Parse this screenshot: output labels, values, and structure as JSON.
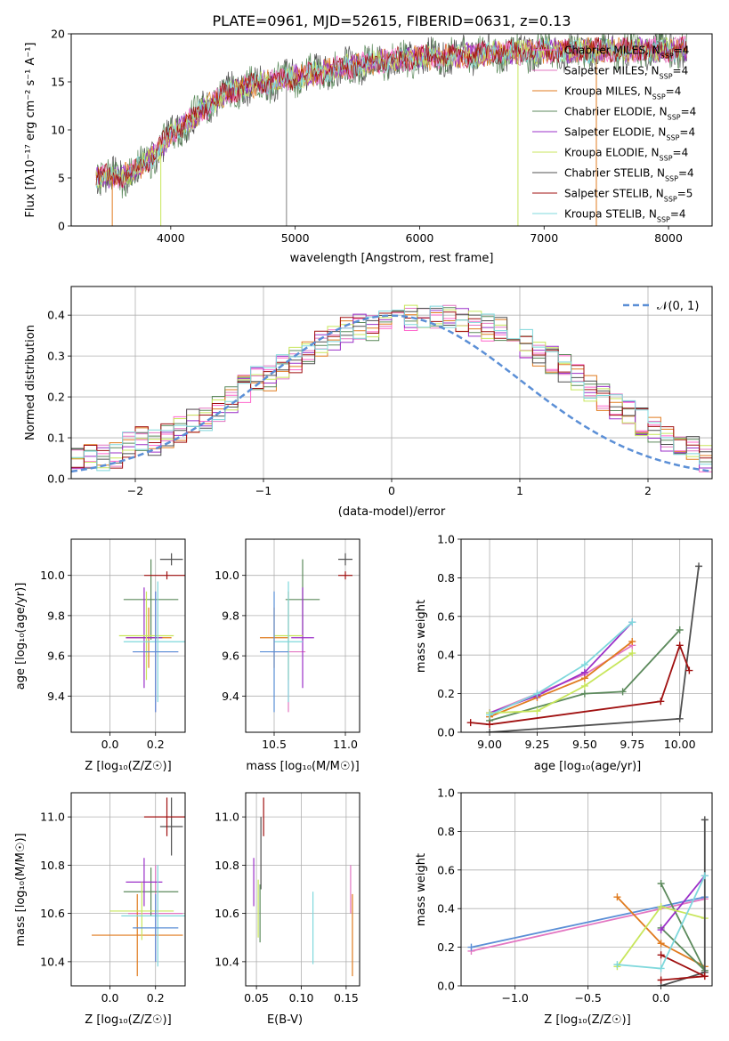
{
  "figure": {
    "title": "PLATE=0961, MJD=52615, FIBERID=0631, z=0.13"
  },
  "models": [
    {
      "name": "Chabrier MILES",
      "nssp": "4",
      "color": "#ff66cc"
    },
    {
      "name": "Salpeter MILES",
      "nssp": "4",
      "color": "#e377c2"
    },
    {
      "name": "Kroupa MILES",
      "nssp": "4",
      "color": "#e07b1f"
    },
    {
      "name": "Chabrier ELODIE",
      "nssp": "4",
      "color": "#5c8a5c"
    },
    {
      "name": "Salpeter ELODIE",
      "nssp": "4",
      "color": "#9b30c8"
    },
    {
      "name": "Kroupa ELODIE",
      "nssp": "4",
      "color": "#c8e65c"
    },
    {
      "name": "Chabrier STELIB",
      "nssp": "4",
      "color": "#505050"
    },
    {
      "name": "Salpeter STELIB",
      "nssp": "5",
      "color": "#a01010"
    },
    {
      "name": "Kroupa STELIB",
      "nssp": "4",
      "color": "#7fd8dc"
    }
  ],
  "chart_data": [
    {
      "id": "spectrum",
      "type": "line",
      "title": "PLATE=0961, MJD=52615, FIBERID=0631, z=0.13",
      "xlabel": "wavelength [Angstrom, rest frame]",
      "ylabel": "Flux [fλ10⁻¹⁷ erg cm⁻² s⁻¹ A⁻¹]",
      "xlim": [
        3200,
        8350
      ],
      "ylim": [
        0,
        20
      ],
      "xticks": [
        "4000",
        "5000",
        "6000",
        "7000",
        "8000"
      ],
      "yticks": [
        "0",
        "5",
        "10",
        "15",
        "20"
      ],
      "legend_position": "top-right",
      "continuum_x": [
        3400,
        3600,
        3800,
        4000,
        4200,
        4400,
        4600,
        4800,
        5000,
        5200,
        5400,
        5600,
        5800,
        6000,
        6200,
        6400,
        6600,
        6800,
        7000,
        7200,
        7400,
        7600,
        7800,
        8000,
        8200
      ],
      "continuum_y": [
        5.2,
        5.0,
        6.5,
        9.5,
        11.5,
        13.5,
        14.5,
        15.0,
        15.5,
        16.0,
        16.5,
        17.0,
        17.3,
        17.5,
        17.7,
        17.8,
        18.0,
        18.1,
        18.2,
        18.2,
        18.3,
        18.3,
        18.3,
        18.4,
        18.4
      ]
    },
    {
      "id": "residuals",
      "type": "bar",
      "xlabel": "(data-model)/error",
      "ylabel": "Normed distribution",
      "xlim": [
        -2.5,
        2.5
      ],
      "ylim": [
        0,
        0.47
      ],
      "xticks": [
        "−2",
        "−1",
        "0",
        "1",
        "2"
      ],
      "yticks": [
        "0.0",
        "0.1",
        "0.2",
        "0.3",
        "0.4"
      ],
      "legend": "𝒩(0, 1)",
      "legend_position": "top-right",
      "bin_width": 0.1,
      "hist_values": [
        0.04,
        0.03,
        0.04,
        0.05,
        0.05,
        0.06,
        0.08,
        0.1,
        0.09,
        0.11,
        0.12,
        0.14,
        0.15,
        0.17,
        0.19,
        0.22,
        0.24,
        0.25,
        0.27,
        0.29,
        0.31,
        0.33,
        0.34,
        0.36,
        0.37,
        0.37,
        0.38,
        0.39,
        0.39,
        0.4,
        0.4,
        0.39,
        0.39,
        0.38,
        0.37,
        0.36,
        0.35,
        0.33,
        0.31,
        0.29,
        0.27,
        0.25,
        0.22,
        0.2,
        0.18,
        0.16,
        0.14,
        0.12,
        0.1,
        0.08,
        0.07,
        0.05,
        0.05,
        0.04,
        0.04
      ],
      "gaussian_color": "#5b8fd6"
    },
    {
      "id": "age-vs-Z",
      "type": "scatter",
      "xlabel": "Z [log₁₀(Z/Z☉)]",
      "ylabel": "age  [log₁₀(age/yr)]",
      "xlim": [
        -0.17,
        0.33
      ],
      "ylim": [
        9.22,
        10.18
      ],
      "xticks": [
        "0.0",
        "0.2"
      ],
      "yticks": [
        "9.4",
        "9.6",
        "9.8",
        "10.0"
      ],
      "points": [
        {
          "x": 0.2,
          "y": 9.62,
          "xerr": 0.1,
          "yerr": 0.3,
          "color": "#e377c2"
        },
        {
          "x": 0.17,
          "y": 9.69,
          "xerr": 0.1,
          "yerr": 0.15,
          "color": "#e07b1f"
        },
        {
          "x": 0.18,
          "y": 9.88,
          "xerr": 0.12,
          "yerr": 0.2,
          "color": "#5c8a5c"
        },
        {
          "x": 0.15,
          "y": 9.69,
          "xerr": 0.08,
          "yerr": 0.25,
          "color": "#9b30c8"
        },
        {
          "x": 0.16,
          "y": 9.7,
          "xerr": 0.12,
          "yerr": 0.22,
          "color": "#c8e65c"
        },
        {
          "x": 0.27,
          "y": 10.08,
          "xerr": 0.05,
          "yerr": 0.03,
          "color": "#505050"
        },
        {
          "x": 0.25,
          "y": 10.0,
          "xerr": 0.1,
          "yerr": 0.02,
          "color": "#a01010"
        },
        {
          "x": 0.21,
          "y": 9.67,
          "xerr": 0.15,
          "yerr": 0.3,
          "color": "#7fd8dc"
        },
        {
          "x": 0.2,
          "y": 9.62,
          "xerr": 0.1,
          "yerr": 0.3,
          "color": "#5b8fd6"
        }
      ]
    },
    {
      "id": "age-vs-mass",
      "type": "scatter",
      "xlabel": "mass [log₁₀(M/M☉)]",
      "ylabel": "",
      "xlim": [
        10.3,
        11.1
      ],
      "ylim": [
        9.22,
        10.18
      ],
      "xticks": [
        "10.5",
        "11.0"
      ],
      "yticks": [
        "9.4",
        "9.6",
        "9.8",
        "10.0"
      ],
      "points": [
        {
          "x": 10.6,
          "y": 9.62,
          "xerr": 0.12,
          "yerr": 0.3,
          "color": "#e377c2"
        },
        {
          "x": 10.5,
          "y": 9.69,
          "xerr": 0.1,
          "yerr": 0.15,
          "color": "#e07b1f"
        },
        {
          "x": 10.7,
          "y": 9.88,
          "xerr": 0.12,
          "yerr": 0.2,
          "color": "#5c8a5c"
        },
        {
          "x": 10.7,
          "y": 9.69,
          "xerr": 0.08,
          "yerr": 0.25,
          "color": "#9b30c8"
        },
        {
          "x": 10.6,
          "y": 9.7,
          "xerr": 0.1,
          "yerr": 0.22,
          "color": "#c8e65c"
        },
        {
          "x": 11.0,
          "y": 10.08,
          "xerr": 0.05,
          "yerr": 0.03,
          "color": "#505050"
        },
        {
          "x": 11.0,
          "y": 10.0,
          "xerr": 0.05,
          "yerr": 0.02,
          "color": "#a01010"
        },
        {
          "x": 10.6,
          "y": 9.67,
          "xerr": 0.1,
          "yerr": 0.3,
          "color": "#7fd8dc"
        },
        {
          "x": 10.5,
          "y": 9.62,
          "xerr": 0.1,
          "yerr": 0.3,
          "color": "#5b8fd6"
        }
      ]
    },
    {
      "id": "weight-vs-age",
      "type": "line",
      "xlabel": "age  [log₁₀(age/yr)]",
      "ylabel": "mass weight",
      "xlim": [
        8.85,
        10.17
      ],
      "ylim": [
        0,
        1
      ],
      "xticks": [
        "9.00",
        "9.25",
        "9.50",
        "9.75",
        "10.00"
      ],
      "yticks": [
        "0.0",
        "0.2",
        "0.4",
        "0.6",
        "0.8",
        "1.0"
      ],
      "series": [
        {
          "x": [
            9.0,
            9.25,
            9.5,
            9.75
          ],
          "y": [
            0.1,
            0.2,
            0.3,
            0.45
          ],
          "color": "#e377c2"
        },
        {
          "x": [
            9.0,
            9.25,
            9.5,
            9.75
          ],
          "y": [
            0.08,
            0.18,
            0.28,
            0.47
          ],
          "color": "#e07b1f"
        },
        {
          "x": [
            9.0,
            9.5,
            9.7,
            10.0
          ],
          "y": [
            0.06,
            0.2,
            0.21,
            0.53
          ],
          "color": "#5c8a5c"
        },
        {
          "x": [
            9.0,
            9.25,
            9.5,
            9.75
          ],
          "y": [
            0.1,
            0.19,
            0.31,
            0.57
          ],
          "color": "#9b30c8"
        },
        {
          "x": [
            9.0,
            9.25,
            9.5,
            9.75
          ],
          "y": [
            0.1,
            0.11,
            0.24,
            0.41
          ],
          "color": "#c8e65c"
        },
        {
          "x": [
            9.0,
            10.0,
            10.1
          ],
          "y": [
            0.0,
            0.07,
            0.86
          ],
          "color": "#505050"
        },
        {
          "x": [
            8.9,
            9.0,
            9.9,
            10.0,
            10.05
          ],
          "y": [
            0.05,
            0.04,
            0.16,
            0.45,
            0.32
          ],
          "color": "#a01010"
        },
        {
          "x": [
            9.0,
            9.25,
            9.5,
            9.75
          ],
          "y": [
            0.09,
            0.2,
            0.35,
            0.57
          ],
          "color": "#7fd8dc"
        }
      ]
    },
    {
      "id": "mass-vs-Z",
      "type": "scatter",
      "xlabel": "Z [log₁₀(Z/Z☉)]",
      "ylabel": "mass [log₁₀(M/M☉)]",
      "xlim": [
        -0.17,
        0.33
      ],
      "ylim": [
        10.3,
        11.1
      ],
      "xticks": [
        "0.0",
        "0.2"
      ],
      "yticks": [
        "10.4",
        "10.6",
        "10.8",
        "11.0"
      ],
      "points": [
        {
          "x": 0.2,
          "y": 10.6,
          "xerr": 0.12,
          "yerr": 0.2,
          "color": "#e377c2"
        },
        {
          "x": 0.12,
          "y": 10.51,
          "xerr": 0.2,
          "yerr": 0.17,
          "color": "#e07b1f"
        },
        {
          "x": 0.18,
          "y": 10.69,
          "xerr": 0.12,
          "yerr": 0.1,
          "color": "#5c8a5c"
        },
        {
          "x": 0.15,
          "y": 10.73,
          "xerr": 0.08,
          "yerr": 0.1,
          "color": "#9b30c8"
        },
        {
          "x": 0.14,
          "y": 10.61,
          "xerr": 0.14,
          "yerr": 0.12,
          "color": "#c8e65c"
        },
        {
          "x": 0.27,
          "y": 10.96,
          "xerr": 0.05,
          "yerr": 0.12,
          "color": "#505050"
        },
        {
          "x": 0.25,
          "y": 11.0,
          "xerr": 0.1,
          "yerr": 0.08,
          "color": "#a01010"
        },
        {
          "x": 0.21,
          "y": 10.59,
          "xerr": 0.16,
          "yerr": 0.21,
          "color": "#7fd8dc"
        },
        {
          "x": 0.2,
          "y": 10.54,
          "xerr": 0.1,
          "yerr": 0.14,
          "color": "#5b8fd6"
        }
      ]
    },
    {
      "id": "mass-vs-ebv",
      "type": "scatter",
      "xlabel": "E(B-V)",
      "ylabel": "",
      "xlim": [
        0.038,
        0.165
      ],
      "ylim": [
        10.3,
        11.1
      ],
      "xticks": [
        "0.05",
        "0.10",
        "0.15"
      ],
      "yticks": [
        "10.4",
        "10.6",
        "10.8",
        "11.0"
      ],
      "points": [
        {
          "x": 0.155,
          "y": 10.7,
          "yerr": 0.1,
          "color": "#e377c2"
        },
        {
          "x": 0.157,
          "y": 10.51,
          "yerr": 0.17,
          "color": "#e07b1f"
        },
        {
          "x": 0.055,
          "y": 10.85,
          "yerr": 0.15,
          "color": "#505050"
        },
        {
          "x": 0.058,
          "y": 11.0,
          "yerr": 0.08,
          "color": "#a01010"
        },
        {
          "x": 0.047,
          "y": 10.73,
          "yerr": 0.1,
          "color": "#9b30c8"
        },
        {
          "x": 0.052,
          "y": 10.62,
          "yerr": 0.12,
          "color": "#c8e65c"
        },
        {
          "x": 0.113,
          "y": 10.54,
          "yerr": 0.15,
          "color": "#7fd8dc"
        },
        {
          "x": 0.054,
          "y": 10.6,
          "yerr": 0.12,
          "color": "#5c8a5c"
        }
      ]
    },
    {
      "id": "weight-vs-Z",
      "type": "line",
      "xlabel": "Z [log₁₀(Z/Z☉)]",
      "ylabel": "mass weight",
      "xlim": [
        -1.37,
        0.35
      ],
      "ylim": [
        0,
        1
      ],
      "xticks": [
        "−1.0",
        "−0.5",
        "0.0"
      ],
      "yticks": [
        "0.0",
        "0.2",
        "0.4",
        "0.6",
        "0.8",
        "1.0"
      ],
      "series": [
        {
          "x": [
            -1.3,
            0.3
          ],
          "y": [
            0.18,
            0.45
          ],
          "color": "#e377c2"
        },
        {
          "x": [
            -1.3,
            0.3
          ],
          "y": [
            0.2,
            0.46
          ],
          "color": "#5b8fd6"
        },
        {
          "x": [
            -0.3,
            0.0,
            0.3
          ],
          "y": [
            0.46,
            0.22,
            0.1
          ],
          "color": "#e07b1f"
        },
        {
          "x": [
            0.0,
            0.3,
            0.0
          ],
          "y": [
            0.53,
            0.08,
            0.3
          ],
          "color": "#5c8a5c"
        },
        {
          "x": [
            0.0,
            0.3
          ],
          "y": [
            0.29,
            0.57
          ],
          "color": "#9b30c8"
        },
        {
          "x": [
            -0.3,
            0.0,
            0.3
          ],
          "y": [
            0.1,
            0.41,
            0.35
          ],
          "color": "#c8e65c"
        },
        {
          "x": [
            0.0,
            0.3,
            0.3
          ],
          "y": [
            0.0,
            0.07,
            0.86
          ],
          "color": "#505050"
        },
        {
          "x": [
            0.0,
            0.3,
            0.0
          ],
          "y": [
            0.16,
            0.05,
            0.03
          ],
          "color": "#a01010"
        },
        {
          "x": [
            -0.3,
            0.0,
            0.3
          ],
          "y": [
            0.11,
            0.09,
            0.57
          ],
          "color": "#7fd8dc"
        }
      ]
    }
  ]
}
